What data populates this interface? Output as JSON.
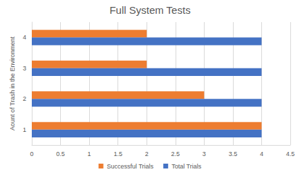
{
  "chart_data": {
    "type": "bar",
    "orientation": "horizontal",
    "title": "Full System Tests",
    "ylabel": "Aount of Trash in the Environment",
    "categories": [
      "1",
      "2",
      "3",
      "4"
    ],
    "series": [
      {
        "name": "Successful Trials",
        "color": "#ed7d31",
        "values": [
          4,
          3,
          2,
          2
        ]
      },
      {
        "name": "Total Trials",
        "color": "#4472c4",
        "values": [
          4,
          4,
          4,
          4
        ]
      }
    ],
    "xlim": [
      0,
      4.5
    ],
    "xticks": [
      0,
      0.5,
      1,
      1.5,
      2,
      2.5,
      3,
      3.5,
      4,
      4.5
    ],
    "grid": true,
    "legend": "bottom"
  }
}
